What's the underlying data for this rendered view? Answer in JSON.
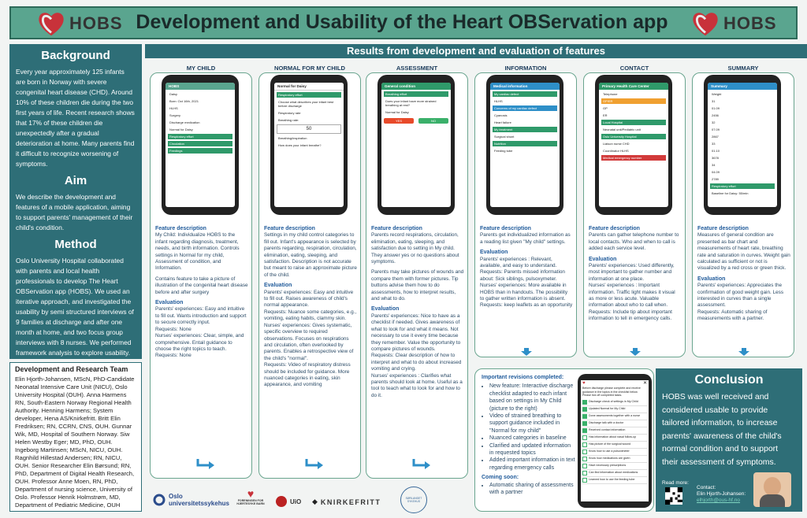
{
  "header": {
    "title": "Development and Usability of the Heart OBServation app",
    "logo_text": "HOBS",
    "brand_color": "#5aa58f",
    "accent_red": "#c8323a"
  },
  "left": {
    "background": {
      "heading": "Background",
      "text": "Every year approximately 125 infants are born in Norway with severe congenital heart disease (CHD). Around 10% of these children die during the two first years of life. Recent research shows that 17% of these children die unexpectedly after a gradual deterioration at home. Many parents find it difficult to recognize worsening of symptoms."
    },
    "aim": {
      "heading": "Aim",
      "text": "We describe the development and features of a mobile application, aiming to support parents' management of their child's condition."
    },
    "method": {
      "heading": "Method",
      "text": "Oslo University Hospital collaborated with parents and local health professionals to develop The Heart OBServation app (HOBS). We used an iterative approach, and investigated the usability by semi structured interviews of 9 families at discharge and after one month at home, and two focus group interviews with 8 nurses. We performed framework analysis to explore usability."
    }
  },
  "team": {
    "heading": "Development and Research Team",
    "text": "Elin Hjorth-Johansen, MScN, PhD-Candidate Neonatal Intensive Care Unit (NICU), Oslo University Hospital (OUH). Anna Harmens RN, South-Eastern Norway Regional Health Authority. Henning Harmens; System developer, Hena AS/Knirkefritt. Britt Elin Fredriksen; RN, CCRN, CNS, OUH. Gunnar Wik, MD, Hospital of Southern Norway. Siw Helen Westby Eger; MD, PhD, OUH. Ingeborg Martinsen; MScN, NICU, OUH. Ragnhild Hillestad Andersen; RN, NICU, OUH. Senior Researcher Elin Børsund; RN, PhD, Department of Digital Health Research, OUH. Professor Anne Moen, RN, PhD, Department of nursing science, University of Oslo. Professor Henrik Holmstrøm, MD, Department of Pediatric Medicine, OUH"
  },
  "results_heading": "Results from development and evaluation of features",
  "columns": [
    {
      "head": "MY CHILD",
      "screen_title": "HOBS",
      "screen_color": "#5aa58f",
      "screen_rows": [
        "Daisy",
        "Born: Oct 16th, 2021",
        "HLHS",
        "Surgery",
        "Discharge medication",
        "Normal for Daisy",
        "Respiratory effort",
        "Circulation",
        "Feedings"
      ],
      "fd_head": "Feature description",
      "fd_text": "My Child: Individualize HOBS to the infant regarding diagnosis, treatment, needs, and birth information. Controls settings in Normal for my child, Assessment of condition, and Information.",
      "fd_text2": "Contains feature to take a picture of illustration of the congenital heart disease before and after surgery",
      "eval_head": "Evaluation",
      "eval_text": "Parents' experiences: Easy and intuitive to fill out. Wants introduction and support to secure correctly input.",
      "req1": "Requests: None",
      "nurse": "Nurses' experiences: Clear, simple, and comprehensive. Entail guidance to choose the right topics to teach.",
      "req2": "Requests: None"
    },
    {
      "head": "NORMAL FOR MY CHILD",
      "screen_title": "Normal for Daisy",
      "screen_color": "#ffffff",
      "screen_rows": [
        "Respiratory effort",
        "Choose what describes your infant best before discharge",
        "Respiratory rate",
        "Breathing rate:",
        "50",
        "Breathing/inspiration",
        "How does your infant breathe?"
      ],
      "fd_head": "Feature description",
      "fd_text": "Settings in my child control categories to fill out. Infant's appearance is selected by parents regarding, respiration, circulation, elimination, eating, sleeping, and satisfaction. Description is not accurate but meant to raise an approximate picture of the child.",
      "eval_head": "Evaluation",
      "eval_text": "Parents' experiences: Easy and intuitive to fill out. Raises awareness of child's normal appearance.",
      "req1": "Requests: Nuance some categories, e.g., vomiting, eating habits, clammy skin.",
      "nurse": "Nurses' experiences: Gives systematic, specific overview to required observations. Focuses on respirations and circulation, often overlooked by parents. Enables a retrospective view of the child's \"normal\".",
      "req2": "Requests: Video of respiratory distress should be included for guidance. More nuanced categories in eating, skin appearance, and vomiting"
    },
    {
      "head": "ASSESSMENT",
      "screen_title": "General condition",
      "screen_color": "#2f9a6a",
      "screen_rows": [
        "Breathing effort",
        "Does your infant have more strained breathing at rest?",
        "Normal for Daisy",
        "YES",
        "NO"
      ],
      "fd_head": "Feature description",
      "fd_text": "Parents record respirations, circulation, elimination, eating, sleeping, and satisfaction due to setting in My child. They answer yes or no questions about symptoms.",
      "fd_text2": "Parents may take pictures of wounds and compare them with former pictures. Tip buttons advise them how to do assessments, how to interpret results, and what to do.",
      "eval_head": "Evaluation",
      "eval_text": "Parents' experiences: Nice to have as a checklist if needed. Gives awareness of what to look for and what it means. Not necessary to use it every time because they remember. Value the opportunity to compare pictures of wounds.",
      "req1": "Requests: Clear description of how to interpret and what to do about increased vomiting and crying.",
      "nurse": "Nurses' experiences : Clarifies what parents should look at home. Useful as a tool to teach what to look for and how to do it.",
      "req2": ""
    },
    {
      "head": "INFORMATION",
      "screen_title": "Medical information",
      "screen_color": "#2e8fc8",
      "screen_rows": [
        "My cardiac defect",
        "HLHS",
        "Concerns of my cardiac defect",
        "Cyanosis",
        "Heart failure",
        "My treatment",
        "Surgical shunt",
        "Nutrition",
        "Feeding tube"
      ],
      "fd_head": "Feature description",
      "fd_text": "Parents get individualized information as a reading list given \"My child\" settings.",
      "eval_head": "Evaluation",
      "eval_text": "Parents' experiences : Relevant, available, and easy to understand.",
      "req1": "Requests: Parents missed information about: Sick siblings, pulsoxymeter.",
      "nurse": "Nurses' experiences: More available in HOBS than in handouts. The possibility to gather written information is absent.",
      "req2": "Requests: keep leaflets as an opportunity"
    },
    {
      "head": "CONTACT",
      "screen_title": "Primary Health Care Center",
      "screen_color": "#2f9a6a",
      "screen_rows": [
        "Telephone",
        "GP/ER",
        "GP",
        "ER",
        "Local Hospital",
        "Neonatal unit/Pediatric unit",
        "Oslo University Hospital",
        "Liaison nurse CHD",
        "Coordinator HLHS",
        "Medical emergency number"
      ],
      "fd_head": "Feature description",
      "fd_text": "Parents can gather telephone number to local contacts. Who and when to call is added each service level.",
      "eval_head": "Evaluation",
      "eval_text": "Parents' experiences: Used differently, most important to gather number and information at one place.",
      "req1": "",
      "nurse": "Nurses' experiences : Important information. Traffic light makes it visual as more or less acute. Valuable information about who to call when.",
      "req2": "Requests: Include tip about important information to tell in emergency calls."
    },
    {
      "head": "SUMMARY",
      "screen_title": "Summary",
      "screen_color": "#2e8fc8",
      "screen_rows": [
        "Weight",
        "31",
        "01.09",
        "2456",
        "32",
        "07.09",
        "2867",
        "33",
        "01.10",
        "3678",
        "34",
        "04.09",
        "2789",
        "Respiratory effort",
        "Baseline for Daisy: 55/min"
      ],
      "fd_head": "Feature description",
      "fd_text": "Measures of general condition are presented as bar chart and measurements of heart rate, breathing rate and saturation in curves. Weight gain calculated as sufficient or not is visualized by a red cross or green thick.",
      "eval_head": "Evaluation",
      "eval_text": "Parents' experiences: Appreciates the confirmation of good weight gain. Less interested in curves than a single assessment.",
      "req1": "Requests: Automatic sharing of measurements with a partner.",
      "nurse": "",
      "req2": ""
    }
  ],
  "revisions": {
    "heading": "Important revisions completed:",
    "items": [
      "New feature: Interactive discharge checklist adapted to each infant based on settings in My Child (picture to the right)",
      "Video of strained breathing to support guidance included in \"Normal for my child\"",
      "Nuanced categories in baseline",
      "Clarified and updated information in requested topics",
      "Added important information in text regarding emergency calls"
    ],
    "coming_head": "Coming soon:",
    "coming_items": [
      "Automatic sharing of assessments with a partner"
    ],
    "checklist_title": "Before discharge please complete and receive guidance in the topics in the checklist below. Please tick off completed tasks.",
    "checklist_items": [
      "Discharge check of settings in My Child",
      "Updated Normal for My Child",
      "Done assessments together with a nurse",
      "Discharge talk with a doctor",
      "Received contact information",
      "Has information about nasal follow-up",
      "Has picture of the surgical wound",
      "Know how to use a pulsoximeter",
      "Know how medications are given",
      "Have necessary prescriptions",
      "Can find information about medications",
      "Learned how to use the feeding tube"
    ]
  },
  "conclusion": {
    "heading": "Conclusion",
    "text": "HOBS was well received and considered usable to provide tailored information, to increase parents' awareness of the child's normal condition and to support their assessment of symptoms.",
    "read_more": "Read more:",
    "contact_label": "Contact:",
    "contact_name": "Elin Hjorth-Johansen:",
    "contact_email": "elhjorth@ous-hf.no"
  },
  "footer_logos": {
    "oslo": "Oslo universitetssykehus",
    "ffhb": "FORENINGEN FOR HJERTESYKE BARN",
    "uio": "UiO",
    "knirke": "KNIRKEFRITT",
    "sorlandet": "SØRLANDET SYKEHUS"
  }
}
